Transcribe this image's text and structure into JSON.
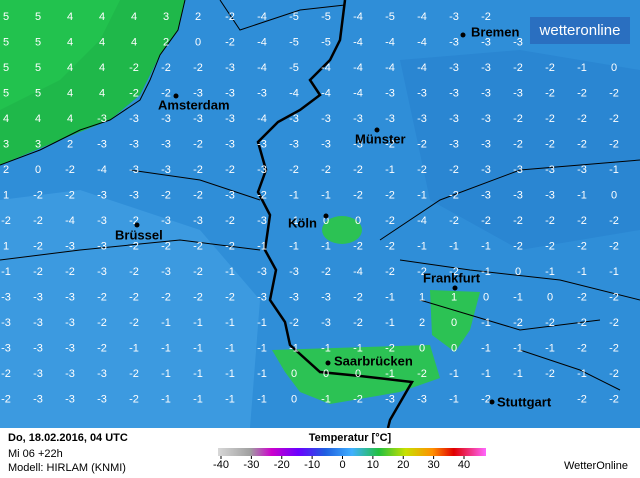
{
  "header": {
    "logo": "wetteronline"
  },
  "grid": {
    "rows": [
      [
        5,
        5,
        4,
        4,
        4,
        3,
        2,
        -2,
        -4,
        -5,
        -5,
        -4,
        -5,
        -4,
        -3,
        -2,
        null,
        null,
        null,
        null
      ],
      [
        5,
        5,
        4,
        4,
        4,
        2,
        0,
        -2,
        -4,
        -5,
        -5,
        -4,
        -4,
        -4,
        -3,
        -3,
        -3,
        -2,
        -2,
        -2
      ],
      [
        5,
        5,
        4,
        4,
        -2,
        -2,
        -2,
        -3,
        -4,
        -5,
        -4,
        -4,
        -4,
        -4,
        -3,
        -3,
        -2,
        -2,
        -1,
        0
      ],
      [
        5,
        5,
        4,
        4,
        -2,
        -2,
        -3,
        -3,
        -3,
        -4,
        -4,
        -4,
        -3,
        -3,
        -3,
        -3,
        -3,
        -2,
        -2,
        -2
      ],
      [
        4,
        4,
        4,
        -3,
        -3,
        -3,
        -3,
        -3,
        -4,
        -3,
        -3,
        -3,
        -3,
        -3,
        -3,
        -3,
        -2,
        -2,
        -2,
        -2
      ],
      [
        3,
        3,
        2,
        -3,
        -3,
        -3,
        -2,
        -3,
        -3,
        -3,
        -3,
        -3,
        -2,
        -2,
        -3,
        -3,
        -2,
        -2,
        -2,
        -2
      ],
      [
        2,
        0,
        -2,
        -4,
        -3,
        -3,
        -2,
        -2,
        -3,
        -2,
        -2,
        -2,
        -1,
        -2,
        -2,
        -3,
        -3,
        -3,
        -3,
        -1
      ],
      [
        1,
        -2,
        -2,
        -3,
        -3,
        -2,
        -2,
        -3,
        -2,
        -1,
        -1,
        -2,
        -2,
        -1,
        -2,
        -3,
        -3,
        -3,
        -1,
        0
      ],
      [
        -2,
        -2,
        -4,
        -3,
        -2,
        -3,
        -3,
        -2,
        -3,
        -1,
        0,
        0,
        -2,
        -4,
        -2,
        -2,
        -2,
        -2,
        -2,
        -2
      ],
      [
        1,
        -2,
        -3,
        -3,
        -2,
        -2,
        -2,
        -2,
        -1,
        -1,
        -1,
        -2,
        -2,
        -1,
        -1,
        -1,
        -2,
        -2,
        -2,
        -2
      ],
      [
        -1,
        -2,
        -2,
        -3,
        -2,
        -3,
        -2,
        -1,
        -3,
        -3,
        -2,
        -4,
        -2,
        -2,
        -2,
        -1,
        0,
        -1,
        -1,
        -1
      ],
      [
        -3,
        -3,
        -3,
        -2,
        -2,
        -2,
        -2,
        -2,
        -3,
        -3,
        -3,
        -2,
        -1,
        1,
        1,
        0,
        -1,
        0,
        -2,
        -2
      ],
      [
        -3,
        -3,
        -3,
        -2,
        -2,
        -1,
        -1,
        -1,
        -1,
        -2,
        -3,
        -2,
        -1,
        2,
        0,
        -1,
        -2,
        -2,
        -2,
        -2
      ],
      [
        -3,
        -3,
        -3,
        -2,
        -1,
        -1,
        -1,
        -1,
        -1,
        -1,
        -1,
        -1,
        -2,
        0,
        0,
        -1,
        -1,
        -1,
        -2,
        -2
      ],
      [
        -2,
        -3,
        -3,
        -3,
        -2,
        -1,
        -1,
        -1,
        -1,
        0,
        0,
        0,
        -1,
        -2,
        -1,
        -1,
        -1,
        -2,
        -1,
        -2
      ],
      [
        -2,
        -3,
        -3,
        -3,
        -2,
        -1,
        -1,
        -1,
        -1,
        0,
        -1,
        -2,
        -3,
        -3,
        -1,
        -2,
        null,
        null,
        -2,
        -2
      ]
    ]
  },
  "cities": [
    "Bremen",
    "Amsterdam",
    "Münster",
    "Köln",
    "Brüssel",
    "Frankfurt",
    "Saarbrücken",
    "Stuttgart"
  ],
  "footer": {
    "date": "Do, 18.02.2016, 04 UTC",
    "run": "Mi 06 +22h",
    "model": "Modell: HIRLAM (KNMI)",
    "legend_title": "Temperatur [°C]",
    "legend_ticks": [
      -40,
      -30,
      -20,
      -10,
      0,
      10,
      20,
      30,
      40
    ],
    "brand": "WetterOnline"
  }
}
